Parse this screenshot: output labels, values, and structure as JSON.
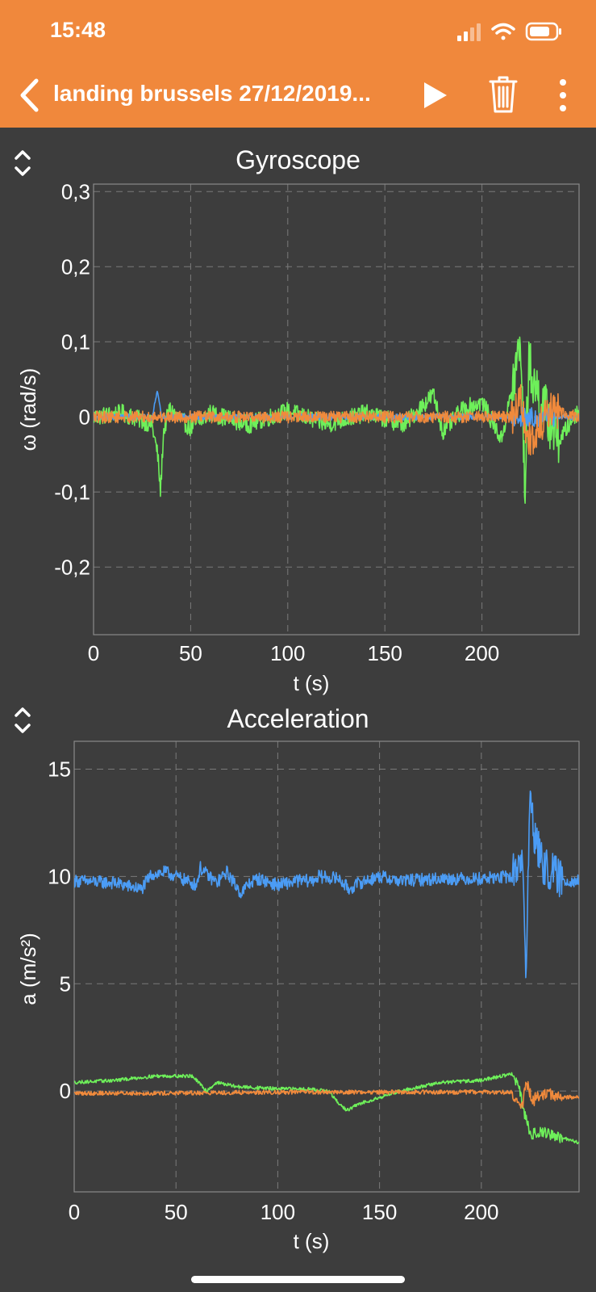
{
  "status_bar": {
    "time": "15:48"
  },
  "nav": {
    "title": "landing brussels 27/12/2019..."
  },
  "colors": {
    "accent": "#f0883c",
    "background": "#3d3d3d",
    "blue": "#4b9cf5",
    "green": "#6ef05a",
    "orange": "#f08a3c"
  },
  "chart_data": [
    {
      "type": "line",
      "title": "Gyroscope",
      "xlabel": "t (s)",
      "ylabel": "ω (rad/s)",
      "xlim": [
        0,
        250
      ],
      "ylim": [
        -0.29,
        0.31
      ],
      "x_ticks": [
        0,
        50,
        100,
        150,
        200
      ],
      "x_tick_labels": [
        "0",
        "50",
        "100",
        "150",
        "200"
      ],
      "y_ticks": [
        0.3,
        0.2,
        0.1,
        0,
        -0.1,
        -0.2
      ],
      "y_tick_labels": [
        "0,3",
        "0,2",
        "0,1",
        "0",
        "-0,1",
        "-0,2"
      ],
      "grid": true,
      "series": [
        {
          "color": "#6ef05a",
          "x": [
            0,
            15,
            30,
            33,
            34.5,
            36,
            39,
            50,
            60,
            80,
            100,
            120,
            140,
            160,
            175,
            180,
            190,
            200,
            210,
            215,
            220,
            222,
            224,
            230,
            240,
            250
          ],
          "y": [
            0,
            0.005,
            -0.01,
            -0.05,
            -0.1,
            -0.02,
            0.01,
            -0.015,
            0.005,
            -0.01,
            0.008,
            -0.01,
            0.005,
            -0.01,
            0.03,
            -0.02,
            0.01,
            0.02,
            -0.03,
            0.03,
            0.1,
            -0.1,
            0.07,
            0.02,
            -0.03,
            0.01
          ],
          "noise": 0.012
        },
        {
          "color": "#4b9cf5",
          "x": [
            0,
            30,
            33,
            35,
            38,
            60,
            100,
            150,
            200,
            220,
            250
          ],
          "y": [
            0,
            0,
            0.035,
            0,
            0,
            0,
            0,
            0,
            0,
            0,
            0
          ],
          "noise": 0.004
        },
        {
          "color": "#f08a3c",
          "x": [
            0,
            50,
            100,
            150,
            200,
            215,
            220,
            225,
            235,
            250
          ],
          "y": [
            0,
            0,
            0,
            0,
            0,
            0,
            0.02,
            -0.04,
            0.01,
            0
          ],
          "noise": 0.008
        }
      ]
    },
    {
      "type": "line",
      "title": "Acceleration",
      "xlabel": "t (s)",
      "ylabel": "a (m/s²)",
      "xlim": [
        0,
        248
      ],
      "ylim": [
        -4.7,
        16.3
      ],
      "x_ticks": [
        0,
        50,
        100,
        150,
        200
      ],
      "x_tick_labels": [
        "0",
        "50",
        "100",
        "150",
        "200"
      ],
      "y_ticks": [
        15,
        10,
        5,
        0
      ],
      "y_tick_labels": [
        "15",
        "10",
        "5",
        "0"
      ],
      "grid": true,
      "series": [
        {
          "color": "#4b9cf5",
          "x": [
            0,
            20,
            33,
            38,
            45,
            55,
            60,
            62,
            65,
            70,
            75,
            82,
            85,
            90,
            100,
            110,
            117,
            120,
            130,
            135,
            140,
            150,
            160,
            180,
            200,
            215,
            220,
            222,
            224,
            226,
            230,
            240,
            248
          ],
          "y": [
            9.8,
            9.7,
            9.4,
            10.1,
            10.2,
            9.8,
            9.6,
            10.4,
            10.1,
            9.7,
            10.2,
            9.2,
            9.6,
            9.9,
            9.6,
            9.8,
            9.8,
            10.0,
            9.9,
            9.4,
            9.7,
            10.0,
            9.8,
            9.9,
            9.9,
            10.0,
            11,
            5.5,
            14,
            12,
            10.5,
            9.8,
            9.8
          ],
          "noise": 0.3
        },
        {
          "color": "#6ef05a",
          "x": [
            0,
            20,
            40,
            58,
            62,
            65,
            70,
            80,
            100,
            115,
            125,
            130,
            134,
            140,
            150,
            160,
            180,
            200,
            215,
            218,
            221,
            224,
            230,
            240,
            248
          ],
          "y": [
            0.4,
            0.5,
            0.7,
            0.7,
            0.3,
            0,
            0.4,
            0.2,
            0.1,
            0.1,
            0,
            -0.6,
            -0.9,
            -0.6,
            -0.3,
            0,
            0.4,
            0.5,
            0.8,
            0.3,
            -1,
            -2,
            -1.9,
            -2.2,
            -2.4
          ],
          "noise": 0.08
        },
        {
          "color": "#f08a3c",
          "x": [
            0,
            50,
            100,
            150,
            200,
            215,
            220,
            222,
            225,
            230,
            240,
            248
          ],
          "y": [
            -0.1,
            -0.1,
            -0.05,
            -0.05,
            -0.05,
            -0.05,
            -0.8,
            0.4,
            -0.5,
            -0.1,
            -0.3,
            -0.3
          ],
          "noise": 0.1
        }
      ]
    }
  ]
}
